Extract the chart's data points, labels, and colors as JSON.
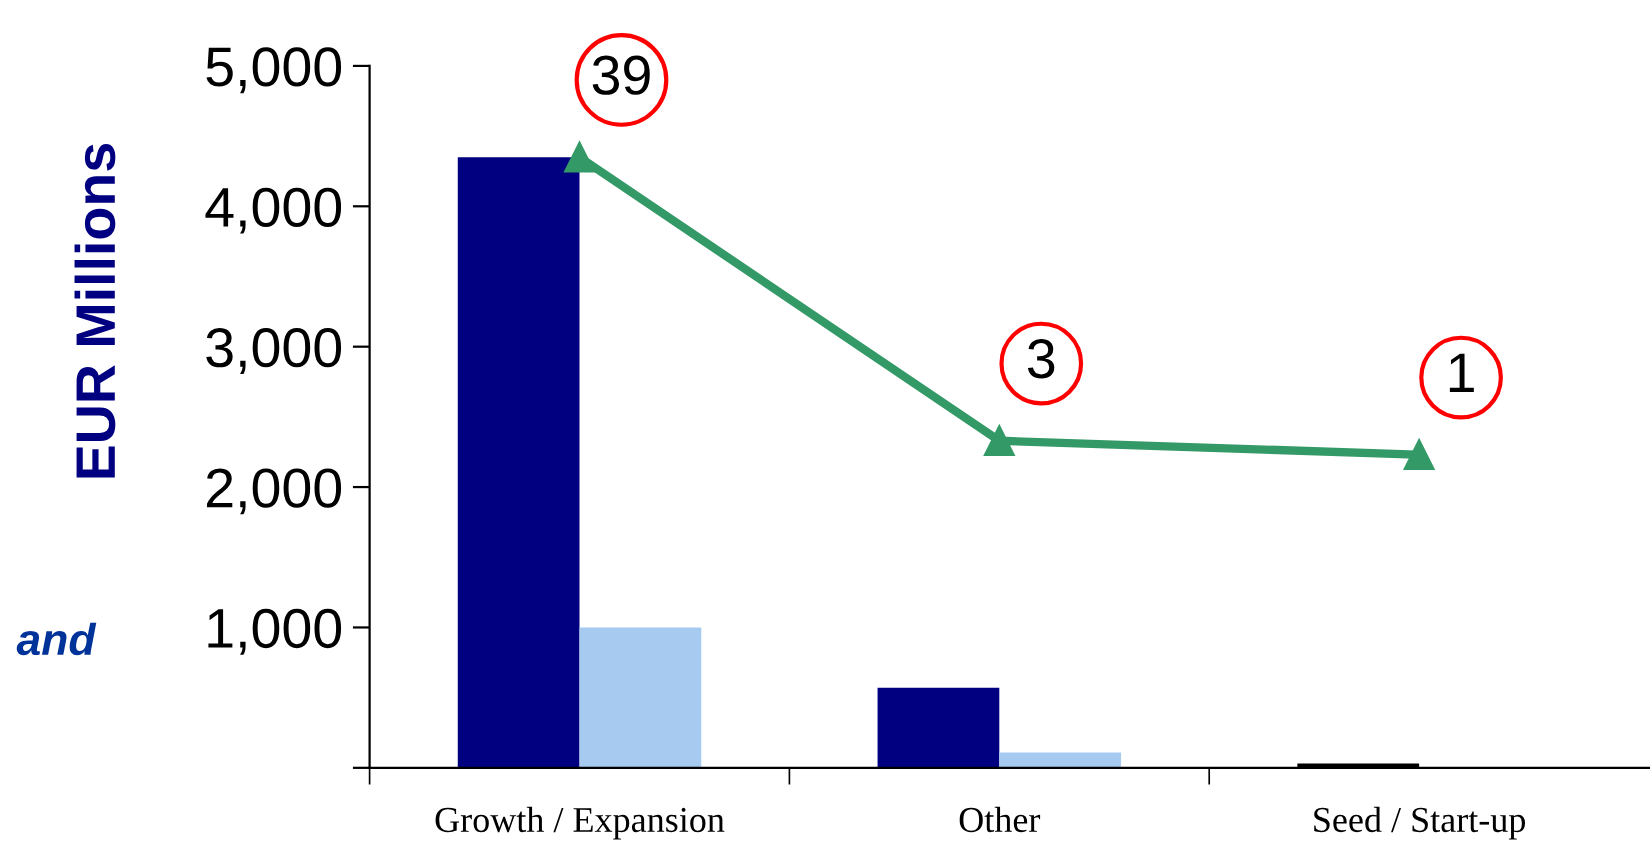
{
  "chart_data": {
    "type": "bar",
    "ylabel": "EUR Millions",
    "categories": [
      "Growth / Expansion",
      "Other",
      "Seed / Start-up"
    ],
    "series": [
      {
        "color": "#000080",
        "colors": [
          "#000080",
          "#000080",
          "#000000"
        ],
        "values": [
          4350,
          570,
          30
        ]
      },
      {
        "color": "#a6caf0",
        "values": [
          1000,
          110,
          null
        ]
      },
      {
        "type": "line",
        "color": "#339966",
        "marker": "triangle",
        "values": [
          4350,
          2330,
          2230
        ]
      }
    ],
    "ylim": [
      0,
      5000
    ],
    "yticks": [
      {
        "value": 0,
        "label": null
      },
      {
        "value": 1000,
        "label": "1,000"
      },
      {
        "value": 2000,
        "label": "2,000"
      },
      {
        "value": 3000,
        "label": "3,000"
      },
      {
        "value": 4000,
        "label": "4,000"
      },
      {
        "value": 5000,
        "label": "5,000"
      }
    ],
    "grid": false,
    "legend": false,
    "annotations": [
      {
        "text": "39",
        "x": "Growth / Expansion",
        "y": 4350
      },
      {
        "text": "3",
        "x": "Other",
        "y": 2330
      },
      {
        "text": "1",
        "x": "Seed / Start-up",
        "y": 2230
      },
      "and"
    ]
  }
}
